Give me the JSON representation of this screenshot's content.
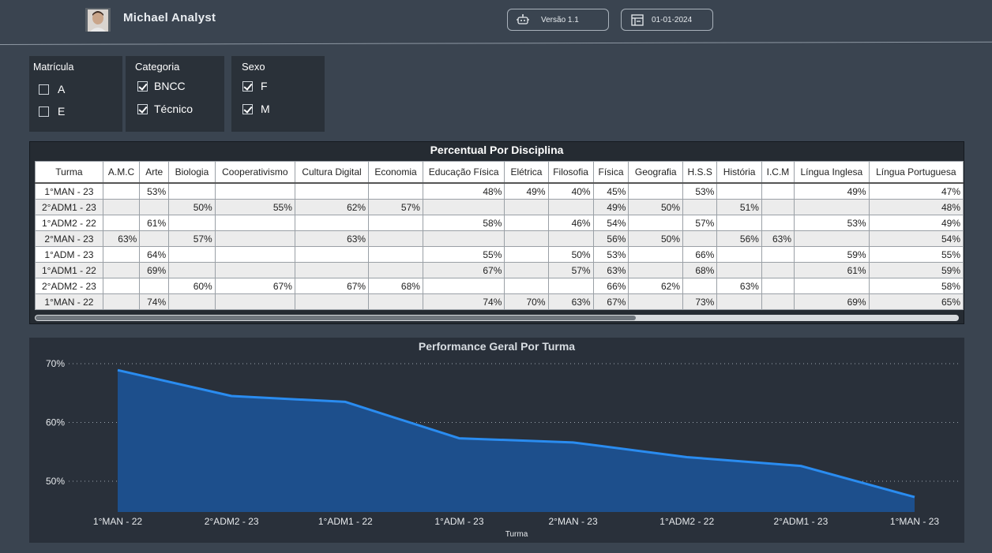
{
  "header": {
    "user_name": "Michael Analyst",
    "version_label": "Versão 1.1",
    "date_label": "01-01-2024"
  },
  "slicers": [
    {
      "title": "Matrícula",
      "options": [
        {
          "label": "A",
          "checked": false
        },
        {
          "label": "E",
          "checked": false
        }
      ]
    },
    {
      "title": "Categoria",
      "options": [
        {
          "label": "BNCC",
          "checked": true
        },
        {
          "label": "Técnico",
          "checked": true
        }
      ]
    },
    {
      "title": "Sexo",
      "options": [
        {
          "label": "F",
          "checked": true
        },
        {
          "label": "M",
          "checked": true
        }
      ]
    }
  ],
  "matrix": {
    "title": "Percentual Por Disciplina",
    "columns": [
      "Turma",
      "A.M.C",
      "Arte",
      "Biologia",
      "Cooperativismo",
      "Cultura Digital",
      "Economia",
      "Educação Física",
      "Elétrica",
      "Filosofia",
      "Física",
      "Geografia",
      "H.S.S",
      "História",
      "I.C.M",
      "Língua Inglesa",
      "Língua Portuguesa"
    ],
    "rows": [
      [
        "1°MAN - 23",
        "",
        "53%",
        "",
        "",
        "",
        "",
        "48%",
        "49%",
        "40%",
        "45%",
        "",
        "53%",
        "",
        "",
        "49%",
        "47%"
      ],
      [
        "2°ADM1 - 23",
        "",
        "",
        "50%",
        "55%",
        "62%",
        "57%",
        "",
        "",
        "",
        "49%",
        "50%",
        "",
        "51%",
        "",
        "",
        "48%"
      ],
      [
        "1°ADM2 - 22",
        "",
        "61%",
        "",
        "",
        "",
        "",
        "58%",
        "",
        "46%",
        "54%",
        "",
        "57%",
        "",
        "",
        "53%",
        "49%"
      ],
      [
        "2°MAN - 23",
        "63%",
        "",
        "57%",
        "",
        "63%",
        "",
        "",
        "",
        "",
        "56%",
        "50%",
        "",
        "56%",
        "63%",
        "",
        "54%"
      ],
      [
        "1°ADM - 23",
        "",
        "64%",
        "",
        "",
        "",
        "",
        "55%",
        "",
        "50%",
        "53%",
        "",
        "66%",
        "",
        "",
        "59%",
        "55%"
      ],
      [
        "1°ADM1 - 22",
        "",
        "69%",
        "",
        "",
        "",
        "",
        "67%",
        "",
        "57%",
        "63%",
        "",
        "68%",
        "",
        "",
        "61%",
        "59%"
      ],
      [
        "2°ADM2 - 23",
        "",
        "",
        "60%",
        "67%",
        "67%",
        "68%",
        "",
        "",
        "",
        "66%",
        "62%",
        "",
        "63%",
        "",
        "",
        "58%"
      ],
      [
        "1°MAN - 22",
        "",
        "74%",
        "",
        "",
        "",
        "",
        "74%",
        "70%",
        "63%",
        "67%",
        "",
        "73%",
        "",
        "",
        "69%",
        "65%"
      ]
    ]
  },
  "colors": {
    "area_fill": "#1d4f8c",
    "line": "#2a8cf0",
    "grid": "#9aa3ad"
  },
  "chart_data": {
    "type": "area",
    "title": "Performance Geral Por Turma",
    "xlabel": "Turma",
    "ylabel": "",
    "categories": [
      "1°MAN - 22",
      "2°ADM2 - 23",
      "1°ADM1 - 22",
      "1°ADM - 23",
      "2°MAN - 23",
      "1°ADM2 - 22",
      "2°ADM1 - 23",
      "1°MAN - 23"
    ],
    "values": [
      68.9,
      64.5,
      63.5,
      57.3,
      56.6,
      54.1,
      52.6,
      47.3
    ],
    "yticks": [
      "70%",
      "60%",
      "50%"
    ],
    "ytick_values": [
      70,
      60,
      50
    ],
    "ylim": [
      45,
      71
    ],
    "grid": true
  }
}
